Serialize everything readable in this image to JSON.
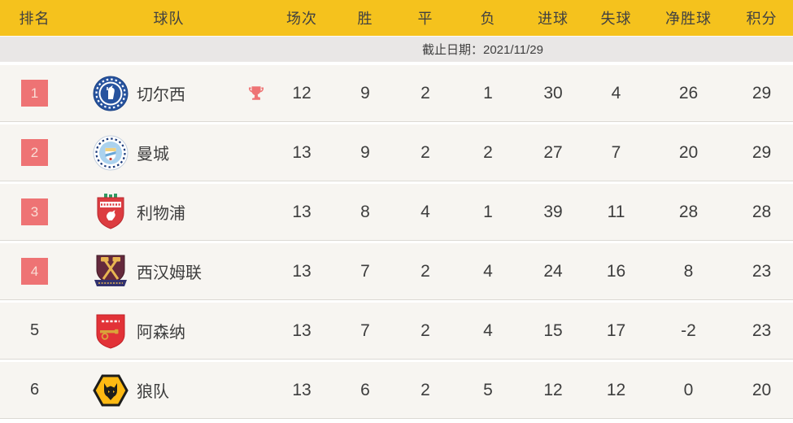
{
  "table": {
    "columns": [
      "排名",
      "球队",
      "场次",
      "胜",
      "平",
      "负",
      "进球",
      "失球",
      "净胜球",
      "积分"
    ],
    "date_note": "截止日期：2021/11/29",
    "rows": [
      {
        "rank": "1",
        "highlighted": true,
        "trophy": true,
        "team": "切尔西",
        "logo": "chelsea",
        "stats": [
          "12",
          "9",
          "2",
          "1",
          "30",
          "4",
          "26",
          "29"
        ]
      },
      {
        "rank": "2",
        "highlighted": true,
        "trophy": false,
        "team": "曼城",
        "logo": "mancity",
        "stats": [
          "13",
          "9",
          "2",
          "2",
          "27",
          "7",
          "20",
          "29"
        ]
      },
      {
        "rank": "3",
        "highlighted": true,
        "trophy": false,
        "team": "利物浦",
        "logo": "liverpool",
        "stats": [
          "13",
          "8",
          "4",
          "1",
          "39",
          "11",
          "28",
          "28"
        ]
      },
      {
        "rank": "4",
        "highlighted": true,
        "trophy": false,
        "team": "西汉姆联",
        "logo": "westham",
        "stats": [
          "13",
          "7",
          "2",
          "4",
          "24",
          "16",
          "8",
          "23"
        ]
      },
      {
        "rank": "5",
        "highlighted": false,
        "trophy": false,
        "team": "阿森纳",
        "logo": "arsenal",
        "stats": [
          "13",
          "7",
          "2",
          "4",
          "15",
          "17",
          "-2",
          "23"
        ]
      },
      {
        "rank": "6",
        "highlighted": false,
        "trophy": false,
        "team": "狼队",
        "logo": "wolves",
        "stats": [
          "13",
          "6",
          "2",
          "5",
          "12",
          "12",
          "0",
          "20"
        ]
      }
    ]
  },
  "colors": {
    "header_bg": "#f5c21d",
    "date_bar_bg": "#e9e7e6",
    "row_bg": "#f7f5f1",
    "rank_badge_bg": "#ee7374",
    "trophy_color": "#ee7374",
    "text": "#3d3d3d"
  }
}
